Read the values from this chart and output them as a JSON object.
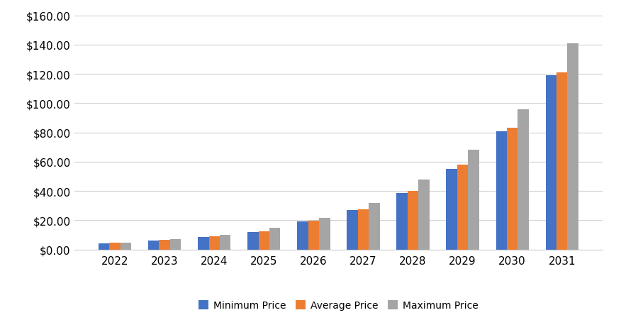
{
  "years": [
    "2022",
    "2023",
    "2024",
    "2025",
    "2026",
    "2027",
    "2028",
    "2029",
    "2030",
    "2031"
  ],
  "min_price": [
    4.0,
    6.0,
    8.5,
    12.0,
    19.0,
    27.0,
    38.5,
    55.0,
    81.0,
    119.0
  ],
  "avg_price": [
    4.5,
    6.5,
    9.0,
    12.5,
    19.5,
    27.5,
    40.0,
    58.0,
    83.0,
    121.0
  ],
  "max_price": [
    4.5,
    7.0,
    10.0,
    15.0,
    21.5,
    32.0,
    48.0,
    68.0,
    96.0,
    141.0
  ],
  "min_color": "#4472c4",
  "avg_color": "#ed7d31",
  "max_color": "#a5a5a5",
  "ylim": [
    0,
    160
  ],
  "yticks": [
    0,
    20,
    40,
    60,
    80,
    100,
    120,
    140,
    160
  ],
  "legend_labels": [
    "Minimum Price",
    "Average Price",
    "Maximum Price"
  ],
  "background_color": "#ffffff",
  "grid_color": "#d0d0d0",
  "bar_width": 0.22,
  "tick_fontsize": 11,
  "legend_fontsize": 10
}
